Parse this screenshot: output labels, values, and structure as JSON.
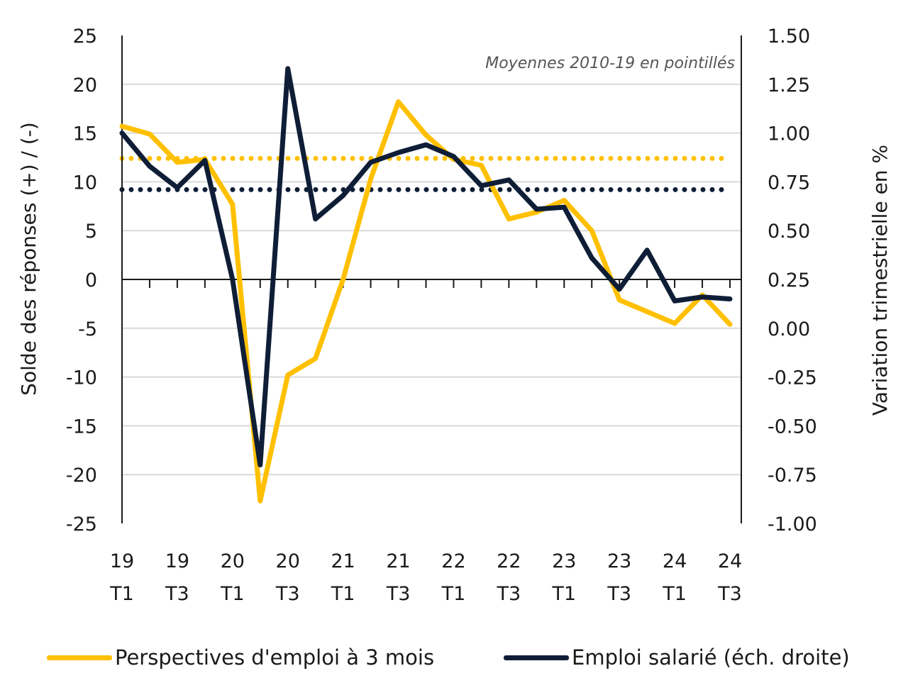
{
  "chart_data": {
    "type": "line",
    "annotation": "Moyennes 2010-19 en pointillés",
    "x_tick_labels": [
      {
        "year": "19",
        "quarter": "T1"
      },
      {
        "year": "19",
        "quarter": "T3"
      },
      {
        "year": "20",
        "quarter": "T1"
      },
      {
        "year": "20",
        "quarter": "T3"
      },
      {
        "year": "21",
        "quarter": "T1"
      },
      {
        "year": "21",
        "quarter": "T3"
      },
      {
        "year": "22",
        "quarter": "T1"
      },
      {
        "year": "22",
        "quarter": "T3"
      },
      {
        "year": "23",
        "quarter": "T1"
      },
      {
        "year": "23",
        "quarter": "T3"
      },
      {
        "year": "24",
        "quarter": "T1"
      },
      {
        "year": "24",
        "quarter": "T3"
      }
    ],
    "x": [
      "2019 T1",
      "2019 T2",
      "2019 T3",
      "2019 T4",
      "2020 T1",
      "2020 T2",
      "2020 T3",
      "2020 T4",
      "2021 T1",
      "2021 T2",
      "2021 T3",
      "2021 T4",
      "2022 T1",
      "2022 T2",
      "2022 T3",
      "2022 T4",
      "2023 T1",
      "2023 T2",
      "2023 T3",
      "2023 T4",
      "2024 T1",
      "2024 T2",
      "2024 T3"
    ],
    "y_left": {
      "label": "Solde des réponses (+) / (-)",
      "ylim": [
        -25,
        25
      ],
      "ticks": [
        "25",
        "20",
        "15",
        "10",
        "5",
        "0",
        "-5",
        "-10",
        "-15",
        "-20",
        "-25"
      ]
    },
    "y_right": {
      "label": "Variation trimestrielle en %",
      "ylim": [
        -1.0,
        1.5
      ],
      "ticks": [
        "1.50",
        "1.25",
        "1.00",
        "0.75",
        "0.50",
        "0.25",
        "0.00",
        "-0.25",
        "-0.50",
        "-0.75",
        "-1.00"
      ]
    },
    "series": [
      {
        "name": "Perspectives d'emploi à 3 mois",
        "axis": "left",
        "color": "#FFC000",
        "values": [
          15.7,
          14.9,
          12.0,
          12.3,
          7.7,
          -22.7,
          -9.8,
          -8.1,
          0.0,
          10.3,
          18.2,
          14.8,
          12.3,
          11.7,
          6.2,
          6.9,
          8.1,
          5.0,
          -2.1,
          -3.3,
          -4.5,
          -1.6,
          -4.6
        ],
        "average_2010_19": 12.4
      },
      {
        "name": "Emploi salarié (éch. droite)",
        "axis": "right",
        "color": "#0F1E36",
        "values": [
          1.0,
          0.83,
          0.72,
          0.86,
          0.25,
          -0.7,
          1.33,
          0.56,
          0.68,
          0.85,
          0.9,
          0.94,
          0.88,
          0.73,
          0.76,
          0.61,
          0.62,
          0.36,
          0.2,
          0.4,
          0.14,
          0.16,
          0.15
        ],
        "average_2010_19": 0.71
      }
    ],
    "grid": "horizontal",
    "legend_position": "bottom"
  }
}
